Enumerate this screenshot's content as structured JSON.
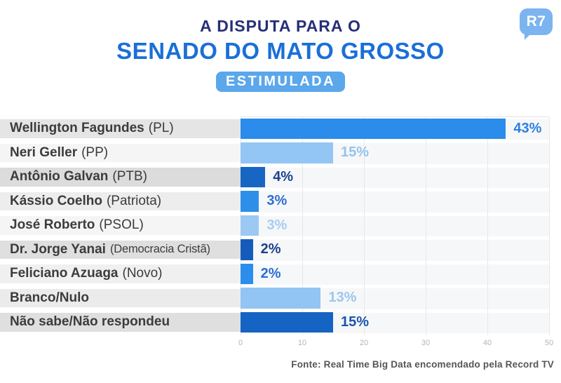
{
  "header": {
    "title_line1": "A DISPUTA PARA O",
    "title_line2": "SENADO DO MATO GROSSO",
    "badge": "ESTIMULADA",
    "logo_text": "R7"
  },
  "chart_data": {
    "type": "bar",
    "orientation": "horizontal",
    "title": "A DISPUTA PARA O SENADO DO MATO GROSSO (ESTIMULADA)",
    "categories": [
      "Wellington Fagundes (PL)",
      "Neri Geller (PP)",
      "Antônio Galvan (PTB)",
      "Kássio Coelho (Patriota)",
      "José Roberto (PSOL)",
      "Dr. Jorge Yanai (Democracia Cristã)",
      "Feliciano Azuaga (Novo)",
      "Branco/Nulo",
      "Não sabe/Não respondeu"
    ],
    "values": [
      43,
      15,
      4,
      3,
      3,
      2,
      2,
      13,
      15
    ],
    "value_labels": [
      "43%",
      "15%",
      "4%",
      "3%",
      "3%",
      "2%",
      "2%",
      "13%",
      "15%"
    ],
    "xlabel": "",
    "ylabel": "",
    "xlim": [
      0,
      50
    ],
    "x_ticks": [
      0,
      10,
      20,
      30,
      40,
      50
    ],
    "grid": true,
    "legend": false
  },
  "rows": [
    {
      "name": "Wellington Fagundes",
      "party": "(PL)",
      "value": 43,
      "label": "43%",
      "bar_color": "#2b8ceb",
      "label_color": "#2a80e2",
      "row_bg": "#e5e5e5"
    },
    {
      "name": "Neri Geller",
      "party": "(PP)",
      "value": 15,
      "label": "15%",
      "bar_color": "#93c6f5",
      "label_color": "#94c3f1",
      "row_bg": "#f5f5f5"
    },
    {
      "name": "Antônio Galvan",
      "party": "(PTB)",
      "value": 4,
      "label": "4%",
      "bar_color": "#1766c4",
      "label_color": "#1d418f",
      "row_bg": "#dcdcdc"
    },
    {
      "name": "Kássio Coelho",
      "party": "(Patriota)",
      "value": 3,
      "label": "3%",
      "bar_color": "#2e8fe9",
      "label_color": "#2d6fd1",
      "row_bg": "#ededed"
    },
    {
      "name": "José Roberto",
      "party": "(PSOL)",
      "value": 3,
      "label": "3%",
      "bar_color": "#9cc8f4",
      "label_color": "#a8ccf2",
      "row_bg": "#f5f5f5"
    },
    {
      "name": "Dr. Jorge Yanai",
      "party": "(Democracia Cristã)",
      "value": 2,
      "label": "2%",
      "bar_color": "#155cba",
      "label_color": "#1c3e8c",
      "row_bg": "#dfdfdf"
    },
    {
      "name": "Feliciano Azuaga",
      "party": "(Novo)",
      "value": 2,
      "label": "2%",
      "bar_color": "#2b8ded",
      "label_color": "#2a6fd3",
      "row_bg": "#f0f0f0"
    },
    {
      "name": "Branco/Nulo",
      "party": "",
      "value": 13,
      "label": "13%",
      "bar_color": "#92c5f4",
      "label_color": "#9cc6ee",
      "row_bg": "#ebebeb"
    },
    {
      "name": "Não sabe/Não respondeu",
      "party": "",
      "value": 15,
      "label": "15%",
      "bar_color": "#1563c3",
      "label_color": "#1a55b0",
      "row_bg": "#dfdfdf"
    }
  ],
  "footer": {
    "source": "Fonte: Real Time Big Data encomendado pela Record TV"
  },
  "colors": {
    "title_navy": "#272f76",
    "title_blue": "#1a6fd8",
    "badge_bg": "#5aa7ec",
    "logo_bg": "#7cb4f0",
    "gridline": "#e8e8ea",
    "plot_band": "#f6f7f8",
    "axis_tick_text": "#b4b4b6",
    "label_text": "#3c3c3c",
    "source_text": "#565656"
  }
}
